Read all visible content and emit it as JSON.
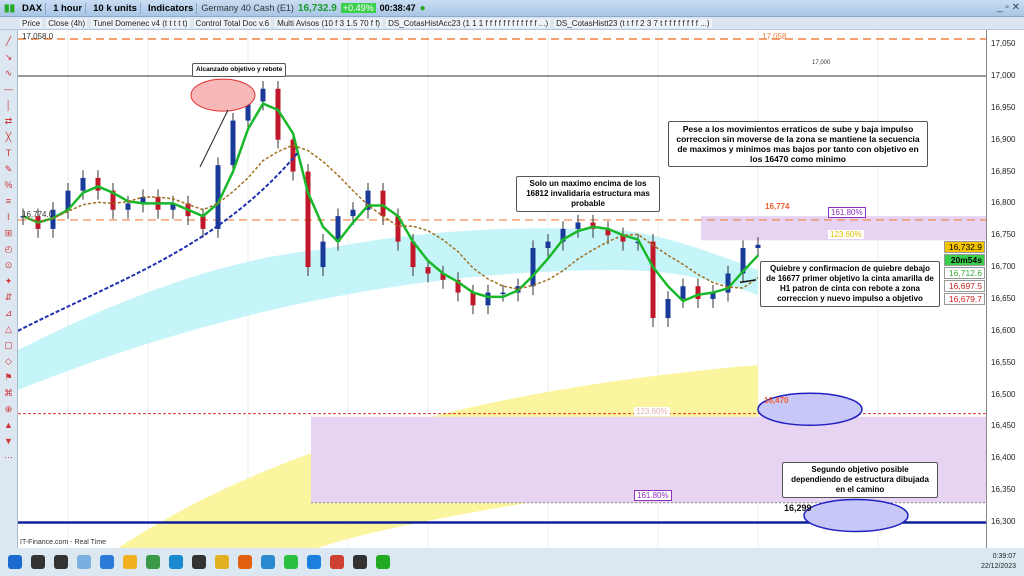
{
  "toolbar": {
    "symbol": "DAX",
    "timeframe": "1 hour",
    "units": "10 k units",
    "indicators": "Indicators",
    "instrument": "Germany 40 Cash (E1)",
    "last": "16,732.9",
    "change": "+0.49%",
    "timer": "00:38:47"
  },
  "indicator_bar": [
    "Price",
    "Close (4h)",
    "Tunel Domenec v4 (t t t t t)",
    "Control Total Doc v.6",
    "Multi Avisos (10 f 3 1.5 70 f f)",
    "DS_CotasHistAcc23 (1 1 1 f f f f f f f f f f f f ...)",
    "DS_CotasHistt23 (t t f f 2 3 7 t f f f f f f f f ...)"
  ],
  "axis": {
    "ticks": [
      "17,050",
      "17,000",
      "16,950",
      "16,900",
      "16,850",
      "16,800",
      "16,750",
      "16,700",
      "16,650",
      "16,600",
      "16,550",
      "16,500",
      "16,450",
      "16,400",
      "16,350",
      "16,300"
    ],
    "tags": {
      "last": "16,732.9",
      "timer": "20m54s",
      "t1": "16,712.6",
      "t2": "16,697.5",
      "t3": "16,679.7"
    }
  },
  "levels": {
    "top": "17,058.0",
    "top_right": "17,058",
    "l17000": "17,000",
    "l16774": "16,774",
    "fib161_top": "161.80%",
    "fib123_top": "123.60%",
    "l16470": "16,470",
    "fib123_bot": "123.60%",
    "fib161_bot": "161.80%",
    "l16299": "16,299",
    "left_price": "16,774.0"
  },
  "notes": {
    "n1": "Alcanzado objetivo y rebote",
    "n2": "Solo un maximo encima de los 16812 invalidaria estructura mas probable",
    "n3": "Pese a los movimientos erraticos de sube y baja impulso correccion sin moverse de la zona se mantiene la secuencia de maximos y minimos mas bajos por tanto con objetivo en los 16470 como minimo",
    "n4": "Quiebre y confirmacion de quiebre debajo de 16677 primer objetivo la cinta amarilla de H1 patron de cinta con rebote a zona correccion y nuevo impulso a objetivo",
    "n5": "Segundo objetivo posible dependiendo de estructura dibujada en el camino"
  },
  "credit": "IT-Finance.com - Real Time",
  "clock": {
    "time": "0:39:07",
    "date": "22/12/2023"
  },
  "colors": {
    "up": "#1a3a9a",
    "down": "#c0182a",
    "accent_green": "#18b82a",
    "magenta": "#e020e0"
  },
  "chart_data": {
    "type": "candlestick",
    "ylim": [
      16280,
      17080
    ],
    "closes": [
      16780,
      16760,
      16790,
      16820,
      16840,
      16820,
      16790,
      16800,
      16810,
      16790,
      16800,
      16780,
      16760,
      16860,
      16930,
      16960,
      16980,
      16900,
      16850,
      16700,
      16740,
      16780,
      16790,
      16820,
      16780,
      16740,
      16700,
      16690,
      16680,
      16660,
      16640,
      16660,
      16660,
      16670,
      16730,
      16740,
      16760,
      16770,
      16760,
      16750,
      16740,
      16740,
      16620,
      16650,
      16670,
      16650,
      16660,
      16690,
      16730,
      16735
    ]
  }
}
